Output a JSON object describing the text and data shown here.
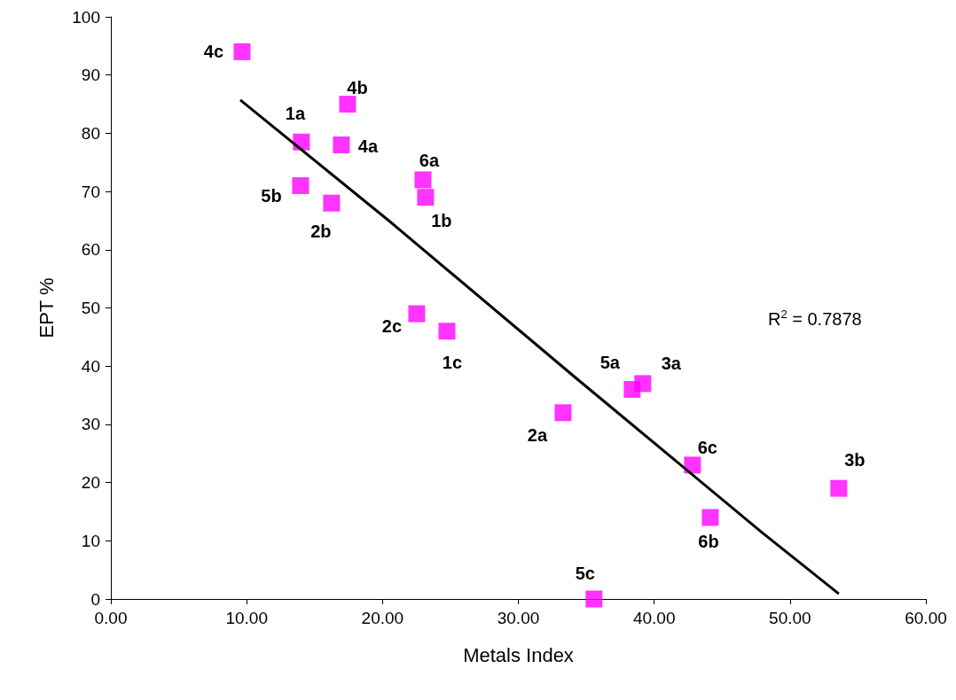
{
  "chart_data": {
    "type": "scatter",
    "xlabel": "Metals Index",
    "ylabel": "EPT %",
    "series": [
      {
        "color": "#ff00ff",
        "marker": "square",
        "x": [
          9.66,
          14.03,
          17.43,
          16.97,
          13.97,
          16.25,
          22.98,
          23.17,
          22.52,
          24.74,
          33.29,
          38.38,
          39.16,
          42.82,
          44.13,
          53.59,
          35.57
        ],
        "values": [
          94,
          78.5,
          85,
          78,
          71,
          68,
          72,
          69,
          49,
          46,
          32,
          36,
          37,
          23,
          14,
          19,
          0
        ]
      },
      {
        "type": "line",
        "color": "#000000",
        "marker": "none",
        "line_style": "solid",
        "x": [
          9.53,
          20.56,
          34.27,
          47.85,
          53.59
        ],
        "values": [
          85.7,
          64.8,
          37.9,
          11.6,
          0.9
        ]
      }
    ],
    "annotations": [
      {
        "text": "4c",
        "x": 9.66,
        "y": 94
      },
      {
        "text": "1a",
        "x": 14.03,
        "y": 78.5
      },
      {
        "text": "4b",
        "x": 17.43,
        "y": 85
      },
      {
        "text": "4a",
        "x": 16.97,
        "y": 78
      },
      {
        "text": "5b",
        "x": 13.97,
        "y": 71
      },
      {
        "text": "2b",
        "x": 16.25,
        "y": 68
      },
      {
        "text": "6a",
        "x": 22.98,
        "y": 72
      },
      {
        "text": "1b",
        "x": 23.17,
        "y": 69
      },
      {
        "text": "2c",
        "x": 22.52,
        "y": 49
      },
      {
        "text": "1c",
        "x": 24.74,
        "y": 46
      },
      {
        "text": "2a",
        "x": 33.29,
        "y": 32
      },
      {
        "text": "5a",
        "x": 38.38,
        "y": 36
      },
      {
        "text": "3a",
        "x": 39.16,
        "y": 37
      },
      {
        "text": "6c",
        "x": 42.82,
        "y": 23
      },
      {
        "text": "6b",
        "x": 44.13,
        "y": 14
      },
      {
        "text": "3b",
        "x": 53.59,
        "y": 19
      },
      {
        "text": "5c",
        "x": 35.57,
        "y": 0
      },
      "R$^{2}$ = 0.7878"
    ],
    "xlim": [
      0,
      60
    ],
    "xticks": [
      {
        "value": 0,
        "label": "0.00"
      },
      {
        "value": 10,
        "label": "10.00"
      },
      {
        "value": 20,
        "label": "20.00"
      },
      {
        "value": 30,
        "label": "30.00"
      },
      {
        "value": 40,
        "label": "40.00"
      },
      {
        "value": 50,
        "label": "50.00"
      },
      {
        "value": 60,
        "label": "60.00"
      }
    ],
    "ylim": [
      0,
      100
    ],
    "yticks": [
      0,
      10,
      20,
      30,
      40,
      50,
      60,
      70,
      80,
      90,
      100
    ],
    "grid": false
  }
}
